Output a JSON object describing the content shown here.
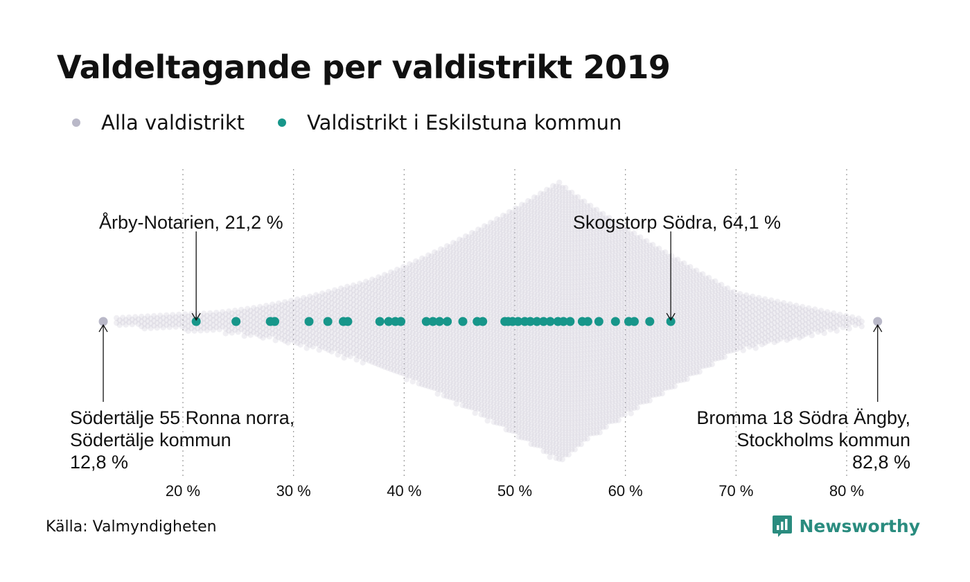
{
  "title": "Valdeltagande per valdistrikt 2019",
  "legend": [
    {
      "label": "Alla valdistrikt",
      "color": "#b9b8c8"
    },
    {
      "label": "Valdistrikt i Eskilstuna kommun",
      "color": "#17968a"
    }
  ],
  "source": "Källa: Valmyndigheten",
  "brand": {
    "name": "Newsworthy",
    "color": "#2a8c7f",
    "icon": "newsworthy-logo-icon"
  },
  "chart_data": {
    "type": "scatter",
    "subtype": "beeswarm",
    "x_unit": "%",
    "xlim": [
      12,
      84
    ],
    "xticks": [
      20,
      30,
      40,
      50,
      60,
      70,
      80
    ],
    "xtick_labels": [
      "20 %",
      "30 %",
      "40 %",
      "50 %",
      "60 %",
      "70 %",
      "80 %"
    ],
    "grid": "vertical dotted lines at ticks",
    "legend_position": "top-left",
    "all_districts_distribution": {
      "description_only_visual": true,
      "min": 12.8,
      "max": 82.8,
      "mode_approx": 54
    },
    "series": [
      {
        "name": "Valdistrikt i Eskilstuna kommun",
        "color": "#17968a",
        "x": [
          21.2,
          24.8,
          27.9,
          28.3,
          31.4,
          33.1,
          34.5,
          34.9,
          37.8,
          38.6,
          39.2,
          39.7,
          42.0,
          42.6,
          43.2,
          43.9,
          45.3,
          46.6,
          47.1,
          49.1,
          49.4,
          49.8,
          50.3,
          50.9,
          51.4,
          52.0,
          52.6,
          53.2,
          53.9,
          54.4,
          55.0,
          56.1,
          56.6,
          57.6,
          59.1,
          60.3,
          60.8,
          62.2,
          64.1
        ]
      }
    ],
    "extremes": [
      {
        "name": "Alla valdistrikt",
        "x": 12.8,
        "color": "#b9b8c8"
      },
      {
        "name": "Alla valdistrikt",
        "x": 82.8,
        "color": "#b9b8c8"
      }
    ],
    "annotations": [
      {
        "lines": [
          "Årby-Notarien, 21,2 %"
        ],
        "x": 21.2,
        "position": "above"
      },
      {
        "lines": [
          "Skogstorp Södra, 64,1 %"
        ],
        "x": 64.1,
        "position": "above"
      },
      {
        "lines": [
          "Södertälje 55 Ronna norra,",
          "Södertälje kommun",
          "12,8 %"
        ],
        "x": 12.8,
        "position": "below-left"
      },
      {
        "lines": [
          "Bromma 18 Södra Ängby,",
          "Stockholms kommun",
          "82,8 %"
        ],
        "x": 82.8,
        "position": "below-right"
      }
    ]
  }
}
